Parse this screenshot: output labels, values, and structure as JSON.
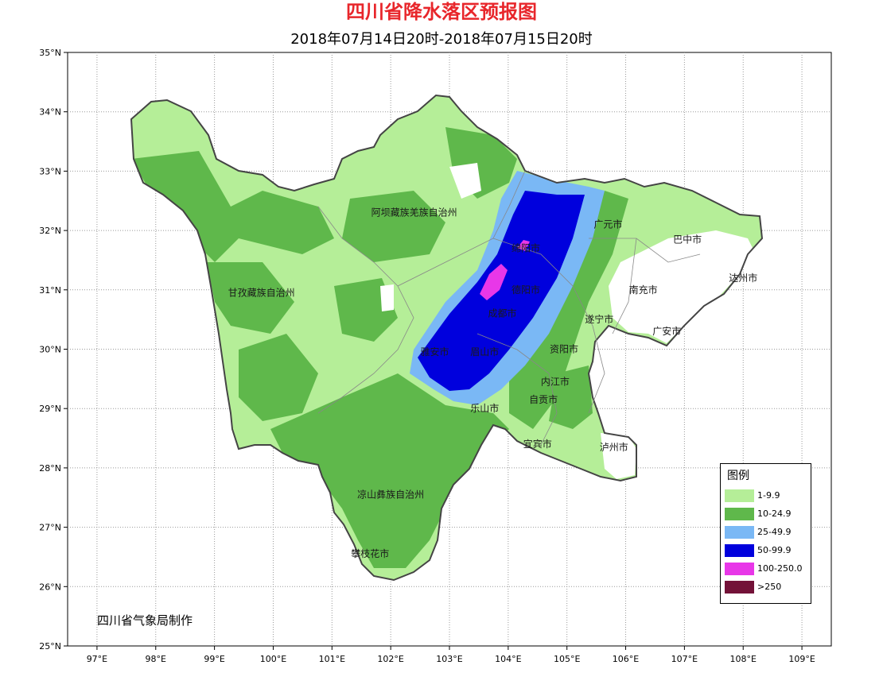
{
  "title": "四川省降水落区预报图",
  "subtitle": "2018年07月14日20时-2018年07月15日20时",
  "credit": "四川省气象局制作",
  "axes": {
    "lat_labels": [
      "35°N",
      "34°N",
      "33°N",
      "32°N",
      "31°N",
      "30°N",
      "29°N",
      "28°N",
      "27°N",
      "26°N",
      "25°N"
    ],
    "lon_labels": [
      "97°E",
      "98°E",
      "99°E",
      "100°E",
      "101°E",
      "102°E",
      "103°E",
      "104°E",
      "105°E",
      "106°E",
      "107°E",
      "108°E",
      "109°E"
    ],
    "lat_range": [
      25,
      35
    ],
    "lon_range": [
      96.5,
      109.5
    ],
    "grid": true
  },
  "legend": {
    "title": "图例",
    "items": [
      {
        "label": "1-9.9",
        "color": "#b5ee98"
      },
      {
        "label": "10-24.9",
        "color": "#5fb84b"
      },
      {
        "label": "25-49.9",
        "color": "#7ab8f5"
      },
      {
        "label": "50-99.9",
        "color": "#0000dd"
      },
      {
        "label": "100-250.0",
        "color": "#e837e8"
      },
      {
        "label": ">250",
        "color": "#731238"
      }
    ]
  },
  "places": [
    {
      "name": "阿坝藏族羌族自治州",
      "lon": 102.4,
      "lat": 32.3
    },
    {
      "name": "甘孜藏族自治州",
      "lon": 99.8,
      "lat": 30.95
    },
    {
      "name": "凉山彝族自治州",
      "lon": 102.0,
      "lat": 27.55
    },
    {
      "name": "攀枝花市",
      "lon": 101.65,
      "lat": 26.55
    },
    {
      "name": "广元市",
      "lon": 105.7,
      "lat": 32.1
    },
    {
      "name": "绵阳市",
      "lon": 104.3,
      "lat": 31.7
    },
    {
      "name": "巴中市",
      "lon": 107.05,
      "lat": 31.85
    },
    {
      "name": "达州市",
      "lon": 108.0,
      "lat": 31.2
    },
    {
      "name": "南充市",
      "lon": 106.3,
      "lat": 31.0
    },
    {
      "name": "德阳市",
      "lon": 104.3,
      "lat": 31.0
    },
    {
      "name": "成都市",
      "lon": 103.9,
      "lat": 30.6
    },
    {
      "name": "遂宁市",
      "lon": 105.55,
      "lat": 30.5
    },
    {
      "name": "广安市",
      "lon": 106.7,
      "lat": 30.3
    },
    {
      "name": "雅安市",
      "lon": 102.75,
      "lat": 29.95
    },
    {
      "name": "眉山市",
      "lon": 103.6,
      "lat": 29.95
    },
    {
      "name": "资阳市",
      "lon": 104.95,
      "lat": 30.0
    },
    {
      "name": "内江市",
      "lon": 104.8,
      "lat": 29.45
    },
    {
      "name": "自贡市",
      "lon": 104.6,
      "lat": 29.15
    },
    {
      "name": "乐山市",
      "lon": 103.6,
      "lat": 29.0
    },
    {
      "name": "宜宾市",
      "lon": 104.5,
      "lat": 28.4
    },
    {
      "name": "泸州市",
      "lon": 105.8,
      "lat": 28.35
    }
  ]
}
